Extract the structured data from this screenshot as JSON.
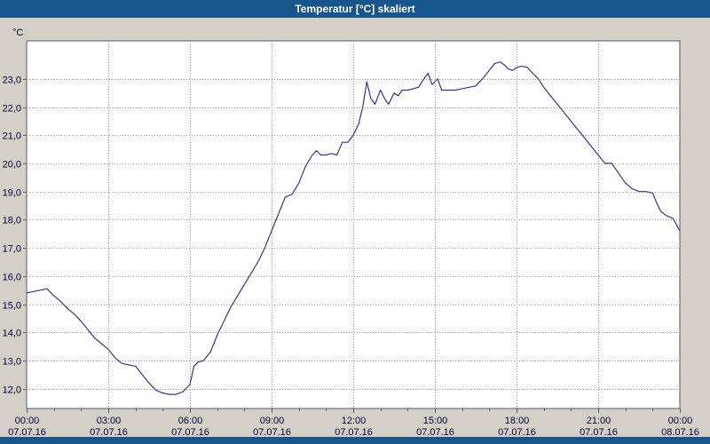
{
  "window": {
    "title": "Temperatur [°C] skaliert"
  },
  "chart_data": {
    "type": "line",
    "title": "Temperatur [°C] skaliert",
    "ylabel": "°C",
    "xlabel": "",
    "legend": "none",
    "grid": "dotted",
    "ylim": [
      11.3,
      24.35
    ],
    "xlim": [
      0,
      24
    ],
    "line_color": "#333399",
    "colors": {
      "titlebar": "#16568c",
      "outer_bg": "#d4d0c8",
      "plot_bg": "#ffffff",
      "grid": "#999999",
      "frame": "#5a5a5a",
      "text": "#000033"
    },
    "y_ticks": [
      {
        "value": 12,
        "label": "12,0"
      },
      {
        "value": 13,
        "label": "13,0"
      },
      {
        "value": 14,
        "label": "14,0"
      },
      {
        "value": 15,
        "label": "15,0"
      },
      {
        "value": 16,
        "label": "16,0"
      },
      {
        "value": 17,
        "label": "17,0"
      },
      {
        "value": 18,
        "label": "18,0"
      },
      {
        "value": 19,
        "label": "19,0"
      },
      {
        "value": 20,
        "label": "20,0"
      },
      {
        "value": 21,
        "label": "21,0"
      },
      {
        "value": 22,
        "label": "22,0"
      },
      {
        "value": 23,
        "label": "23,0"
      }
    ],
    "x_ticks": [
      {
        "hour": 0,
        "time": "00:00",
        "date": "07.07.16"
      },
      {
        "hour": 3,
        "time": "03:00",
        "date": "07.07.16"
      },
      {
        "hour": 6,
        "time": "06:00",
        "date": "07.07.16"
      },
      {
        "hour": 9,
        "time": "09:00",
        "date": "07.07.16"
      },
      {
        "hour": 12,
        "time": "12:00",
        "date": "07.07.16"
      },
      {
        "hour": 15,
        "time": "15:00",
        "date": "07.07.16"
      },
      {
        "hour": 18,
        "time": "18:00",
        "date": "07.07.16"
      },
      {
        "hour": 21,
        "time": "21:00",
        "date": "07.07.16"
      },
      {
        "hour": 24,
        "time": "00:00",
        "date": "08.07.16"
      }
    ],
    "series": [
      {
        "name": "Temperatur",
        "x": [
          0,
          0.25,
          0.5,
          0.75,
          1,
          1.25,
          1.5,
          1.75,
          2,
          2.25,
          2.5,
          2.75,
          3,
          3.25,
          3.5,
          3.75,
          4,
          4.25,
          4.5,
          4.75,
          5,
          5.25,
          5.5,
          5.75,
          6,
          6.15,
          6.3,
          6.5,
          6.75,
          7,
          7.25,
          7.5,
          7.75,
          8,
          8.25,
          8.5,
          8.75,
          9,
          9.25,
          9.5,
          9.75,
          10,
          10.25,
          10.5,
          10.65,
          10.8,
          11,
          11.2,
          11.4,
          11.6,
          11.8,
          12,
          12.2,
          12.35,
          12.5,
          12.65,
          12.8,
          13,
          13.15,
          13.3,
          13.5,
          13.65,
          13.8,
          14,
          14.2,
          14.4,
          14.6,
          14.75,
          14.9,
          15,
          15.1,
          15.25,
          15.5,
          15.75,
          16,
          16.25,
          16.5,
          16.75,
          17,
          17.2,
          17.4,
          17.55,
          17.7,
          17.85,
          18,
          18.2,
          18.4,
          18.6,
          18.8,
          19,
          19.25,
          19.5,
          19.75,
          20,
          20.25,
          20.5,
          20.75,
          21,
          21.25,
          21.5,
          21.75,
          22,
          22.25,
          22.5,
          22.75,
          23,
          23.15,
          23.3,
          23.5,
          23.75,
          24
        ],
        "y": [
          15.4,
          15.45,
          15.5,
          15.55,
          15.3,
          15.1,
          14.85,
          14.65,
          14.4,
          14.1,
          13.8,
          13.6,
          13.4,
          13.1,
          12.9,
          12.85,
          12.8,
          12.5,
          12.2,
          11.95,
          11.85,
          11.8,
          11.8,
          11.9,
          12.15,
          12.8,
          12.95,
          13.0,
          13.3,
          13.9,
          14.4,
          14.9,
          15.3,
          15.7,
          16.1,
          16.5,
          17.0,
          17.6,
          18.2,
          18.8,
          18.9,
          19.3,
          19.9,
          20.3,
          20.45,
          20.3,
          20.3,
          20.35,
          20.3,
          20.75,
          20.75,
          21.0,
          21.4,
          22.0,
          22.9,
          22.3,
          22.1,
          22.6,
          22.3,
          22.1,
          22.5,
          22.4,
          22.6,
          22.6,
          22.65,
          22.7,
          23.0,
          23.2,
          22.8,
          22.9,
          23.0,
          22.6,
          22.6,
          22.6,
          22.65,
          22.7,
          22.75,
          23.0,
          23.3,
          23.55,
          23.6,
          23.5,
          23.35,
          23.3,
          23.4,
          23.45,
          23.4,
          23.2,
          23.0,
          22.7,
          22.4,
          22.1,
          21.8,
          21.5,
          21.2,
          20.9,
          20.6,
          20.3,
          20.0,
          20.0,
          19.65,
          19.3,
          19.1,
          19.0,
          19.0,
          18.95,
          18.6,
          18.3,
          18.15,
          18.05,
          17.6
        ]
      }
    ]
  }
}
